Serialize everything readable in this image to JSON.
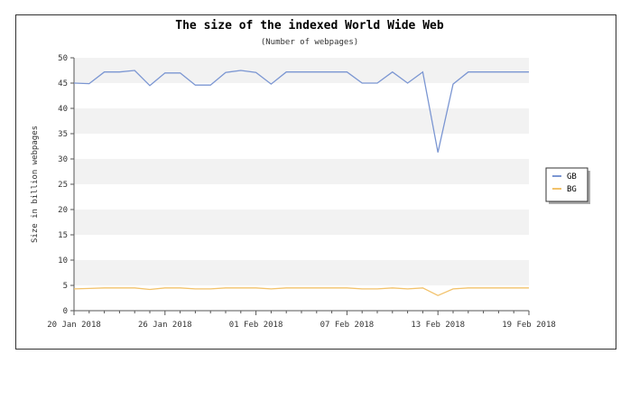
{
  "chart_data": {
    "type": "line",
    "title": "The size of the indexed World Wide Web",
    "subtitle": "(Number of webpages)",
    "xlabel": "",
    "ylabel": "Size in billion webpages",
    "ylim": [
      0,
      50
    ],
    "yticks": [
      0,
      5,
      10,
      15,
      20,
      25,
      30,
      35,
      40,
      45,
      50
    ],
    "x_start": "20 Jan 2018",
    "x_end": "19 Feb 2018",
    "x_ticks": [
      "20 Jan 2018",
      "26 Jan 2018",
      "01 Feb 2018",
      "07 Feb 2018",
      "13 Feb 2018",
      "19 Feb 2018"
    ],
    "grid": "horizontal bands",
    "legend_position": "right",
    "x": [
      "20 Jan 2018",
      "21 Jan 2018",
      "22 Jan 2018",
      "23 Jan 2018",
      "24 Jan 2018",
      "25 Jan 2018",
      "26 Jan 2018",
      "27 Jan 2018",
      "28 Jan 2018",
      "29 Jan 2018",
      "30 Jan 2018",
      "31 Jan 2018",
      "01 Feb 2018",
      "02 Feb 2018",
      "03 Feb 2018",
      "04 Feb 2018",
      "05 Feb 2018",
      "06 Feb 2018",
      "07 Feb 2018",
      "08 Feb 2018",
      "09 Feb 2018",
      "10 Feb 2018",
      "11 Feb 2018",
      "12 Feb 2018",
      "13 Feb 2018",
      "14 Feb 2018",
      "15 Feb 2018",
      "16 Feb 2018",
      "17 Feb 2018",
      "18 Feb 2018",
      "19 Feb 2018"
    ],
    "series": [
      {
        "name": "GB",
        "color": "#7b96d2",
        "values": [
          45.0,
          44.9,
          47.2,
          47.2,
          47.5,
          44.5,
          47.0,
          47.0,
          44.6,
          44.6,
          47.1,
          47.5,
          47.1,
          44.8,
          47.2,
          47.2,
          47.2,
          47.2,
          47.2,
          45.0,
          45.0,
          47.2,
          45.0,
          47.2,
          31.3,
          44.8,
          47.2,
          47.2,
          47.2,
          47.2,
          47.2
        ]
      },
      {
        "name": "BG",
        "color": "#f2c26b",
        "values": [
          4.3,
          4.4,
          4.5,
          4.5,
          4.5,
          4.2,
          4.5,
          4.5,
          4.3,
          4.3,
          4.5,
          4.5,
          4.5,
          4.3,
          4.5,
          4.5,
          4.5,
          4.5,
          4.5,
          4.3,
          4.3,
          4.5,
          4.3,
          4.5,
          3.0,
          4.3,
          4.5,
          4.5,
          4.5,
          4.5,
          4.5
        ]
      }
    ]
  }
}
